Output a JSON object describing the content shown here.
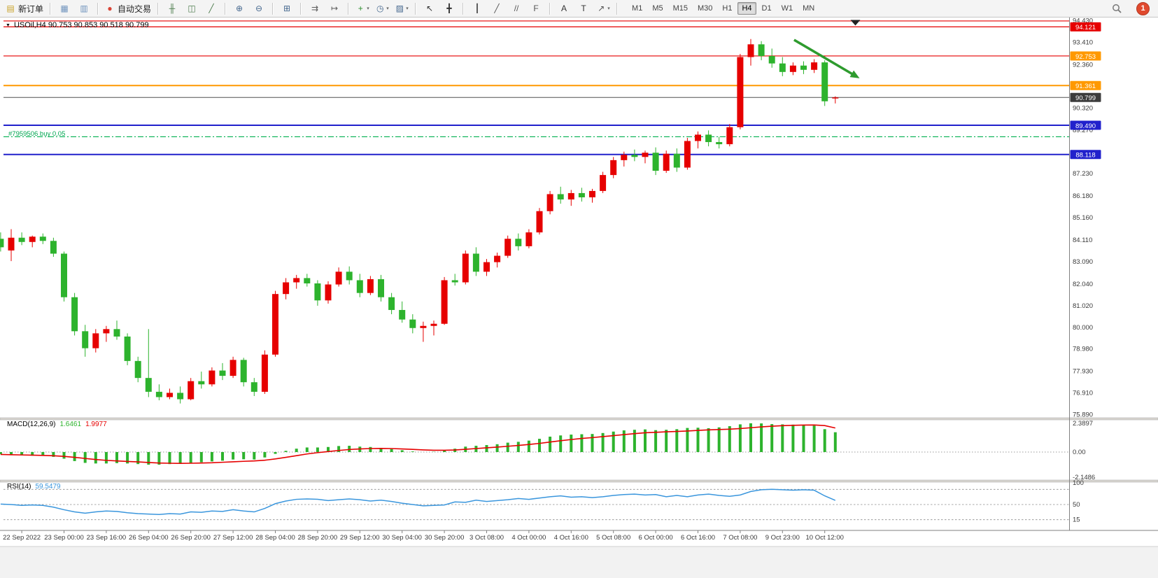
{
  "toolbar": {
    "groups": [
      {
        "items": [
          {
            "name": "new-order-button",
            "icon": "new-order-icon",
            "glyph": "▤",
            "color": "#c9a227",
            "label": "新订单"
          }
        ]
      },
      {
        "items": [
          {
            "name": "charts-window-button",
            "icon": "charts-window-icon",
            "glyph": "▦",
            "color": "#6f93bd"
          },
          {
            "name": "profiles-button",
            "icon": "profiles-icon",
            "glyph": "▥",
            "color": "#6f93bd"
          }
        ]
      },
      {
        "items": [
          {
            "name": "autotrading-button",
            "icon": "autotrading-icon",
            "glyph": "●",
            "color": "#d94436",
            "label": "自动交易"
          }
        ]
      },
      {
        "items": [
          {
            "name": "bar-chart-type-button",
            "icon": "bar-chart-icon",
            "glyph": "╫",
            "color": "#4e7d4e"
          },
          {
            "name": "candlestick-type-button",
            "icon": "candlestick-icon",
            "glyph": "◫",
            "color": "#4e7d4e"
          },
          {
            "name": "line-chart-type-button",
            "icon": "line-chart-icon",
            "glyph": "╱",
            "color": "#4e7d4e"
          }
        ]
      },
      {
        "items": [
          {
            "name": "zoom-in-button",
            "icon": "zoom-in-icon",
            "glyph": "⊕",
            "color": "#46688f"
          },
          {
            "name": "zoom-out-button",
            "icon": "zoom-out-icon",
            "glyph": "⊖",
            "color": "#46688f"
          }
        ]
      },
      {
        "items": [
          {
            "name": "tile-windows-button",
            "icon": "tile-windows-icon",
            "glyph": "⊞",
            "color": "#46688f"
          }
        ]
      },
      {
        "items": [
          {
            "name": "auto-scroll-button",
            "icon": "auto-scroll-icon",
            "glyph": "⇉",
            "color": "#5a5a5a"
          },
          {
            "name": "chart-shift-button",
            "icon": "chart-shift-icon",
            "glyph": "↦",
            "color": "#5a5a5a"
          }
        ]
      },
      {
        "items": [
          {
            "name": "indicators-button",
            "icon": "indicators-icon",
            "glyph": "+",
            "color": "#2f8f2f",
            "dd": "▾"
          },
          {
            "name": "periods-button",
            "icon": "periods-icon",
            "glyph": "◷",
            "color": "#46688f",
            "dd": "▾"
          },
          {
            "name": "templates-button",
            "icon": "templates-icon",
            "glyph": "▨",
            "color": "#46688f",
            "dd": "▾"
          }
        ]
      },
      {
        "items": [
          {
            "name": "cursor-button",
            "icon": "cursor-icon",
            "glyph": "↖",
            "color": "#333333"
          },
          {
            "name": "crosshair-button",
            "icon": "crosshair-icon",
            "glyph": "╋",
            "color": "#333333"
          }
        ]
      },
      {
        "items": [
          {
            "name": "vertical-line-button",
            "icon": "vertical-line-icon",
            "glyph": "┃",
            "color": "#555555"
          },
          {
            "name": "trendline-button",
            "icon": "trendline-icon",
            "glyph": "╱",
            "color": "#555555"
          },
          {
            "name": "channel-button",
            "icon": "channel-icon",
            "glyph": "//",
            "color": "#555555"
          },
          {
            "name": "fibonacci-button",
            "icon": "fibonacci-icon",
            "glyph": "F",
            "color": "#555555"
          }
        ]
      },
      {
        "items": [
          {
            "name": "text-tool-button",
            "icon": "text-tool-icon",
            "glyph": "A",
            "color": "#333333"
          },
          {
            "name": "label-tool-button",
            "icon": "label-tool-icon",
            "glyph": "T",
            "color": "#333333"
          },
          {
            "name": "arrows-tool-button",
            "icon": "arrows-tool-icon",
            "glyph": "↗",
            "color": "#555555",
            "dd": "▾"
          }
        ]
      }
    ],
    "timeframes": [
      "M1",
      "M5",
      "M15",
      "M30",
      "H1",
      "H4",
      "D1",
      "W1",
      "MN"
    ],
    "active_timeframe": "H4",
    "notification_count": "1"
  },
  "chart_data": {
    "type": "candlestick",
    "symbol": "USOil",
    "timeframe": "H4",
    "title": "USOil,H4  90.753 90.853 90.518 90.799",
    "menu_arrow": "▼",
    "ohlc_current": {
      "open": 90.753,
      "high": 90.853,
      "low": 90.518,
      "close": 90.799
    },
    "ylim": [
      75.89,
      94.43
    ],
    "grid": false,
    "colors": {
      "up": "#e60000",
      "down": "#2db32d",
      "bid_line": "#505050"
    },
    "time_labels": [
      "22 Sep 2022",
      "23 Sep 00:00",
      "23 Sep 16:00",
      "26 Sep 04:00",
      "26 Sep 20:00",
      "27 Sep 12:00",
      "28 Sep 04:00",
      "28 Sep 20:00",
      "29 Sep 12:00",
      "30 Sep 04:00",
      "30 Sep 20:00",
      "3 Oct 08:00",
      "4 Oct 00:00",
      "4 Oct 16:00",
      "5 Oct 08:00",
      "6 Oct 00:00",
      "6 Oct 16:00",
      "7 Oct 08:00",
      "9 Oct 23:00",
      "10 Oct 12:00"
    ],
    "price_ticks": [
      [
        "94.430",
        94.43
      ],
      [
        "93.410",
        93.41
      ],
      [
        "92.360",
        92.36
      ],
      [
        "90.320",
        90.32
      ],
      [
        "89.270",
        89.27
      ],
      [
        "87.230",
        87.23
      ],
      [
        "86.180",
        86.18
      ],
      [
        "85.160",
        85.16
      ],
      [
        "84.110",
        84.11
      ],
      [
        "83.090",
        83.09
      ],
      [
        "82.040",
        82.04
      ],
      [
        "81.020",
        81.02
      ],
      [
        "80.000",
        80.0
      ],
      [
        "78.980",
        78.98
      ],
      [
        "77.930",
        77.93
      ],
      [
        "76.910",
        76.91
      ],
      [
        "75.890",
        75.89
      ]
    ],
    "hlines": [
      {
        "price": 94.4,
        "color": "#e60000",
        "width": 1.2
      },
      {
        "price": 94.121,
        "color": "#e60000",
        "width": 1.2
      },
      {
        "price": 92.753,
        "color": "#e60000",
        "width": 1.2
      },
      {
        "price": 91.361,
        "color": "#ff9900",
        "width": 2
      },
      {
        "price": 90.799,
        "color": "#505050",
        "width": 1
      },
      {
        "price": 89.49,
        "color": "#2121cc",
        "width": 2
      },
      {
        "price": 88.118,
        "color": "#2121cc",
        "width": 2
      }
    ],
    "badges": [
      {
        "label": "94.121",
        "price": 94.121,
        "bg": "#e60000"
      },
      {
        "label": "92.753",
        "price": 92.753,
        "bg": "#ff9900"
      },
      {
        "label": "91.361",
        "price": 91.361,
        "bg": "#ff9900"
      },
      {
        "label": "90.799",
        "price": 90.799,
        "bg": "#3c3c3c"
      },
      {
        "label": "89.490",
        "price": 89.49,
        "bg": "#2121cc"
      },
      {
        "label": "88.118",
        "price": 88.118,
        "bg": "#2121cc"
      }
    ],
    "position": {
      "label": "#7959506 buy 0.05",
      "price": 88.95,
      "color": "#00b050"
    },
    "arrow": {
      "from": {
        "bar": 75.1,
        "price": 93.51
      },
      "to": {
        "bar": 81.3,
        "price": 91.7
      },
      "color": "#2e9b2e"
    },
    "top_marker": {
      "bar": 80.9,
      "price": 94.38
    },
    "candles": [
      [
        84.15,
        84.45,
        83.55,
        83.75
      ],
      [
        83.6,
        84.6,
        83.1,
        84.2
      ],
      [
        84.2,
        84.45,
        83.85,
        84.0
      ],
      [
        84.0,
        84.3,
        83.75,
        84.25
      ],
      [
        84.25,
        84.4,
        83.9,
        84.05
      ],
      [
        84.05,
        84.2,
        83.3,
        83.45
      ],
      [
        83.45,
        83.55,
        81.2,
        81.4
      ],
      [
        81.4,
        81.6,
        79.6,
        79.8
      ],
      [
        79.8,
        80.1,
        78.6,
        79.0
      ],
      [
        79.0,
        79.9,
        78.8,
        79.7
      ],
      [
        79.7,
        80.05,
        79.3,
        79.9
      ],
      [
        79.9,
        80.3,
        79.4,
        79.55
      ],
      [
        79.55,
        79.7,
        78.2,
        78.4
      ],
      [
        78.4,
        78.6,
        77.4,
        77.6
      ],
      [
        77.6,
        79.9,
        76.7,
        76.95
      ],
      [
        76.95,
        77.3,
        76.55,
        76.7
      ],
      [
        76.7,
        77.1,
        76.6,
        76.9
      ],
      [
        76.9,
        77.2,
        76.4,
        76.6
      ],
      [
        76.6,
        77.6,
        76.55,
        77.45
      ],
      [
        77.45,
        77.9,
        77.1,
        77.3
      ],
      [
        77.3,
        78.1,
        77.2,
        77.95
      ],
      [
        77.95,
        78.3,
        77.5,
        77.7
      ],
      [
        77.7,
        78.6,
        77.6,
        78.45
      ],
      [
        78.45,
        78.55,
        77.2,
        77.4
      ],
      [
        77.4,
        77.6,
        76.75,
        76.95
      ],
      [
        76.95,
        78.9,
        76.85,
        78.7
      ],
      [
        78.7,
        81.7,
        78.6,
        81.55
      ],
      [
        81.55,
        82.3,
        81.3,
        82.1
      ],
      [
        82.1,
        82.45,
        81.8,
        82.3
      ],
      [
        82.3,
        82.5,
        81.9,
        82.05
      ],
      [
        82.05,
        82.2,
        81.0,
        81.25
      ],
      [
        81.25,
        82.15,
        81.1,
        82.0
      ],
      [
        82.0,
        82.8,
        81.9,
        82.6
      ],
      [
        82.6,
        82.85,
        82.0,
        82.2
      ],
      [
        82.2,
        82.5,
        81.4,
        81.6
      ],
      [
        81.6,
        82.4,
        81.5,
        82.25
      ],
      [
        82.25,
        82.45,
        81.2,
        81.4
      ],
      [
        81.4,
        81.6,
        80.6,
        80.8
      ],
      [
        80.8,
        81.2,
        80.2,
        80.35
      ],
      [
        80.35,
        80.6,
        79.7,
        79.95
      ],
      [
        79.95,
        80.25,
        79.3,
        80.05
      ],
      [
        80.05,
        80.3,
        79.6,
        80.15
      ],
      [
        80.15,
        82.35,
        80.1,
        82.2
      ],
      [
        82.2,
        82.5,
        81.95,
        82.1
      ],
      [
        82.1,
        83.6,
        82.0,
        83.45
      ],
      [
        83.45,
        83.75,
        82.4,
        82.6
      ],
      [
        82.6,
        83.2,
        82.4,
        83.05
      ],
      [
        83.05,
        83.5,
        82.8,
        83.35
      ],
      [
        83.35,
        84.3,
        83.25,
        84.15
      ],
      [
        84.15,
        84.4,
        83.6,
        83.8
      ],
      [
        83.8,
        84.6,
        83.7,
        84.45
      ],
      [
        84.45,
        85.6,
        84.35,
        85.45
      ],
      [
        85.45,
        86.4,
        85.3,
        86.25
      ],
      [
        86.25,
        86.6,
        85.8,
        86.0
      ],
      [
        86.0,
        86.45,
        85.7,
        86.3
      ],
      [
        86.3,
        86.55,
        85.9,
        86.1
      ],
      [
        86.1,
        86.5,
        85.85,
        86.4
      ],
      [
        86.4,
        87.3,
        86.3,
        87.15
      ],
      [
        87.15,
        88.0,
        87.0,
        87.85
      ],
      [
        87.85,
        88.25,
        87.55,
        88.1
      ],
      [
        88.1,
        88.35,
        87.8,
        88.0
      ],
      [
        88.0,
        88.3,
        87.7,
        88.2
      ],
      [
        88.2,
        88.45,
        87.15,
        87.35
      ],
      [
        87.35,
        88.3,
        87.25,
        88.15
      ],
      [
        88.15,
        88.4,
        87.3,
        87.5
      ],
      [
        87.5,
        88.9,
        87.4,
        88.75
      ],
      [
        88.75,
        89.2,
        88.4,
        89.05
      ],
      [
        89.05,
        89.25,
        88.5,
        88.7
      ],
      [
        88.7,
        88.95,
        88.4,
        88.6
      ],
      [
        88.6,
        89.55,
        88.5,
        89.4
      ],
      [
        89.4,
        92.85,
        89.3,
        92.7
      ],
      [
        92.7,
        93.55,
        92.3,
        93.3
      ],
      [
        93.3,
        93.45,
        92.55,
        92.75
      ],
      [
        92.75,
        93.1,
        92.2,
        92.4
      ],
      [
        92.4,
        92.7,
        91.8,
        92.0
      ],
      [
        92.0,
        92.45,
        91.85,
        92.3
      ],
      [
        92.3,
        92.5,
        91.9,
        92.1
      ],
      [
        92.1,
        92.6,
        91.95,
        92.45
      ],
      [
        92.45,
        92.55,
        90.4,
        90.62
      ],
      [
        90.753,
        90.853,
        90.518,
        90.799
      ]
    ],
    "macd": {
      "title": "MACD(12,26,9)",
      "main_value": "1.6461",
      "signal_value": "1.9977",
      "axis": [
        [
          "2.3897",
          2.3897
        ],
        [
          "0.00",
          0
        ],
        [
          "-2.1486",
          -2.1486
        ]
      ],
      "colors": {
        "hist": "#2db32d",
        "signal": "#e60000"
      },
      "main": [
        -0.18,
        -0.2,
        -0.25,
        -0.3,
        -0.32,
        -0.4,
        -0.55,
        -0.75,
        -0.9,
        -0.95,
        -0.95,
        -0.92,
        -0.95,
        -1.0,
        -1.05,
        -1.05,
        -1.0,
        -0.98,
        -0.9,
        -0.85,
        -0.78,
        -0.72,
        -0.62,
        -0.6,
        -0.62,
        -0.45,
        -0.15,
        0.1,
        0.28,
        0.38,
        0.38,
        0.42,
        0.5,
        0.52,
        0.45,
        0.42,
        0.35,
        0.25,
        0.15,
        0.05,
        0.0,
        0.02,
        0.15,
        0.28,
        0.45,
        0.52,
        0.58,
        0.65,
        0.78,
        0.85,
        0.95,
        1.1,
        1.28,
        1.38,
        1.45,
        1.48,
        1.5,
        1.58,
        1.7,
        1.8,
        1.85,
        1.88,
        1.82,
        1.85,
        1.9,
        2.0,
        2.02,
        1.98,
        2.05,
        2.15,
        2.3,
        2.3897,
        2.38,
        2.32,
        2.3,
        2.28,
        2.25,
        2.2,
        1.9,
        1.6461
      ],
      "signal": [
        -0.2,
        -0.22,
        -0.24,
        -0.26,
        -0.28,
        -0.31,
        -0.36,
        -0.44,
        -0.53,
        -0.62,
        -0.69,
        -0.74,
        -0.78,
        -0.82,
        -0.87,
        -0.91,
        -0.93,
        -0.94,
        -0.93,
        -0.91,
        -0.89,
        -0.85,
        -0.81,
        -0.77,
        -0.74,
        -0.68,
        -0.57,
        -0.44,
        -0.3,
        -0.16,
        -0.05,
        0.04,
        0.13,
        0.21,
        0.26,
        0.29,
        0.3,
        0.29,
        0.26,
        0.22,
        0.18,
        0.15,
        0.15,
        0.17,
        0.23,
        0.29,
        0.35,
        0.41,
        0.48,
        0.55,
        0.63,
        0.72,
        0.83,
        0.94,
        1.04,
        1.13,
        1.2,
        1.28,
        1.36,
        1.45,
        1.53,
        1.6,
        1.64,
        1.68,
        1.71,
        1.75,
        1.8,
        1.84,
        1.87,
        1.9,
        1.95,
        2.02,
        2.09,
        2.15,
        2.19,
        2.22,
        2.24,
        2.25,
        2.2,
        1.9977
      ]
    },
    "rsi": {
      "title": "RSI(14)",
      "value": "59.5479",
      "axis": [
        [
          "100",
          100
        ],
        [
          "50",
          50
        ],
        [
          "15",
          15
        ]
      ],
      "levels": [
        85,
        50,
        15
      ],
      "color": "#3a96dd",
      "values": [
        51,
        50,
        48,
        49,
        48,
        44,
        38,
        33,
        30,
        33,
        35,
        34,
        31,
        29,
        28,
        27,
        29,
        28,
        33,
        32,
        35,
        34,
        38,
        35,
        33,
        41,
        52,
        58,
        62,
        63,
        62,
        59,
        61,
        63,
        61,
        58,
        60,
        57,
        53,
        50,
        47,
        48,
        49,
        56,
        55,
        60,
        57,
        59,
        61,
        64,
        62,
        65,
        68,
        70,
        67,
        68,
        66,
        68,
        71,
        73,
        74,
        72,
        73,
        68,
        71,
        68,
        72,
        74,
        71,
        69,
        72,
        80,
        84,
        85,
        84,
        83,
        84,
        83,
        70,
        59.5479
      ]
    }
  }
}
